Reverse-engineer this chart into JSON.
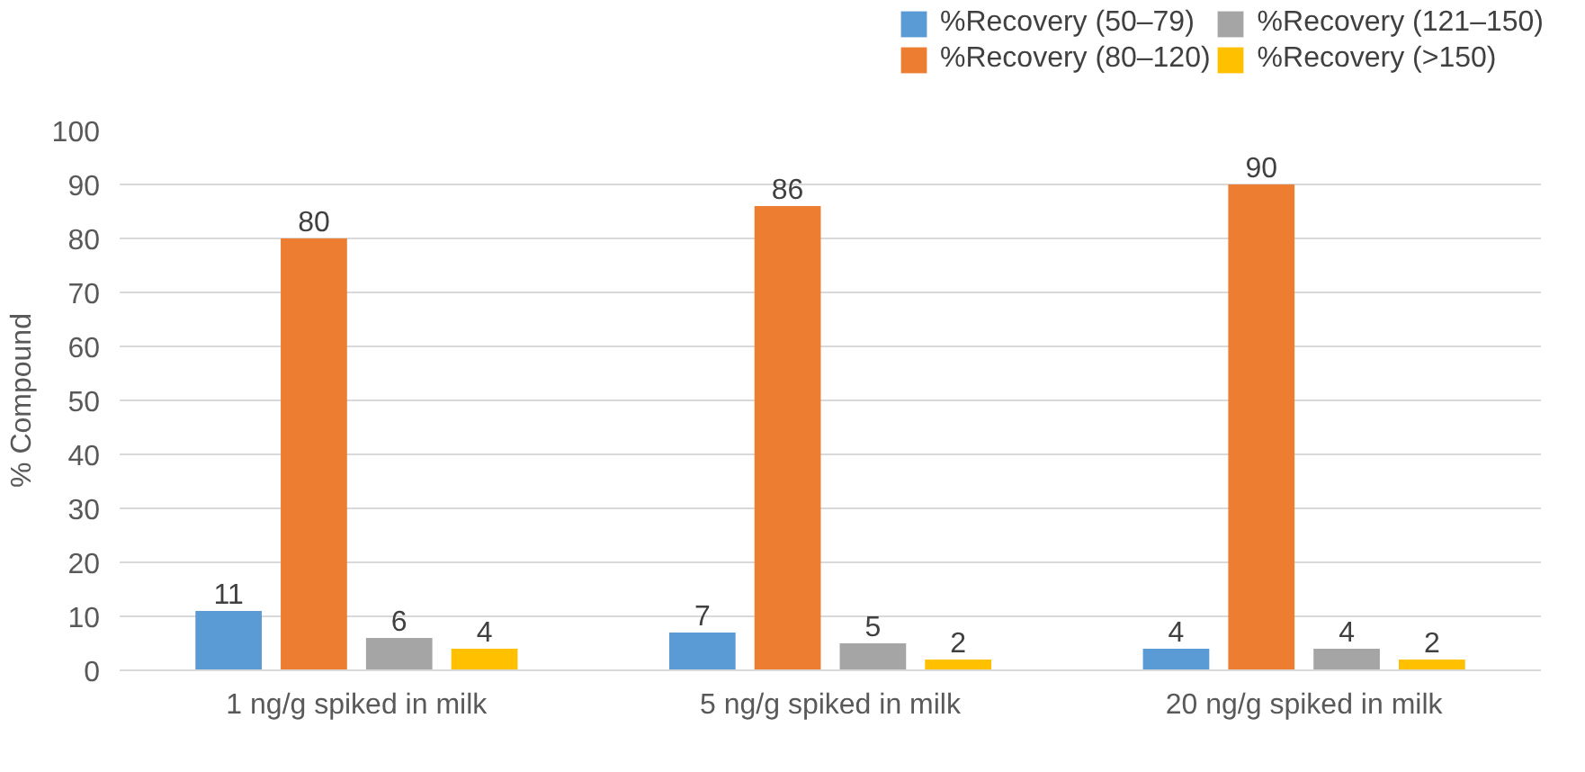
{
  "chart_data": {
    "type": "bar",
    "ylabel": "% Compound",
    "categories": [
      "1 ng/g spiked in milk",
      "5 ng/g spiked in milk",
      "20 ng/g spiked in milk"
    ],
    "series": [
      {
        "name": "%Recovery (50–79)",
        "color": "#5b9bd5",
        "values": [
          11,
          7,
          4
        ]
      },
      {
        "name": "%Recovery (80–120)",
        "color": "#ed7d31",
        "values": [
          80,
          86,
          90
        ]
      },
      {
        "name": "%Recovery (121–150)",
        "color": "#a5a5a5",
        "values": [
          6,
          5,
          4
        ]
      },
      {
        "name": "%Recovery (>150)",
        "color": "#ffc000",
        "values": [
          4,
          2,
          2
        ]
      }
    ],
    "ylim": [
      0,
      100
    ],
    "yticks": [
      0,
      10,
      20,
      30,
      40,
      50,
      60,
      70,
      80,
      90,
      100
    ],
    "grid": "y",
    "legend": "top right",
    "data_labels": true
  }
}
